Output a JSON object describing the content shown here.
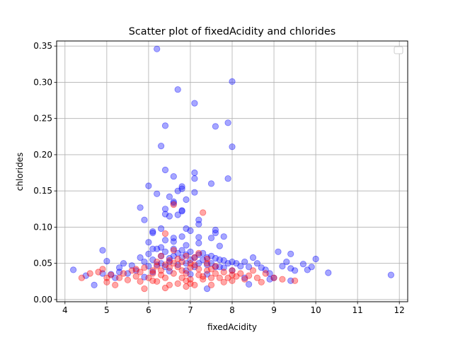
{
  "chart_data": {
    "type": "scatter",
    "title": "Scatter plot of fixedAcidity and chlorides",
    "xlabel": "fixedAcidity",
    "ylabel": "chlorides",
    "xlim": [
      3.8,
      12.2
    ],
    "ylim": [
      -0.003,
      0.357
    ],
    "xticks": [
      "4",
      "5",
      "6",
      "7",
      "8",
      "9",
      "10",
      "11",
      "12"
    ],
    "yticks": [
      "0.00",
      "0.05",
      "0.10",
      "0.15",
      "0.20",
      "0.25",
      "0.30",
      "0.35"
    ],
    "grid": true,
    "legend": {
      "placement": "top-right",
      "entries": []
    },
    "series": [
      {
        "color": "#0000ff",
        "alpha": 0.35,
        "points": [
          [
            4.2,
            0.041
          ],
          [
            4.5,
            0.033
          ],
          [
            4.7,
            0.02
          ],
          [
            4.9,
            0.068
          ],
          [
            4.9,
            0.036
          ],
          [
            5.0,
            0.053
          ],
          [
            5.1,
            0.035
          ],
          [
            5.3,
            0.044
          ],
          [
            5.4,
            0.05
          ],
          [
            5.5,
            0.036
          ],
          [
            5.6,
            0.047
          ],
          [
            5.7,
            0.04
          ],
          [
            5.8,
            0.058
          ],
          [
            5.9,
            0.052
          ],
          [
            6.0,
            0.063
          ],
          [
            6.0,
            0.046
          ],
          [
            6.1,
            0.055
          ],
          [
            6.1,
            0.092
          ],
          [
            6.2,
            0.048
          ],
          [
            6.2,
            0.07
          ],
          [
            6.3,
            0.06
          ],
          [
            6.3,
            0.05
          ],
          [
            6.4,
            0.066
          ],
          [
            6.4,
            0.045
          ],
          [
            6.5,
            0.057
          ],
          [
            6.5,
            0.052
          ],
          [
            6.6,
            0.07
          ],
          [
            6.6,
            0.06
          ],
          [
            6.7,
            0.064
          ],
          [
            6.7,
            0.048
          ],
          [
            6.8,
            0.068
          ],
          [
            6.8,
            0.058
          ],
          [
            6.9,
            0.062
          ],
          [
            6.9,
            0.05
          ],
          [
            7.0,
            0.066
          ],
          [
            7.0,
            0.055
          ],
          [
            7.1,
            0.058
          ],
          [
            7.1,
            0.045
          ],
          [
            7.2,
            0.062
          ],
          [
            7.2,
            0.05
          ],
          [
            7.3,
            0.064
          ],
          [
            7.3,
            0.055
          ],
          [
            7.4,
            0.058
          ],
          [
            7.4,
            0.048
          ],
          [
            7.5,
            0.06
          ],
          [
            7.5,
            0.05
          ],
          [
            7.6,
            0.057
          ],
          [
            7.6,
            0.045
          ],
          [
            7.7,
            0.055
          ],
          [
            7.7,
            0.045
          ],
          [
            7.8,
            0.054
          ],
          [
            7.8,
            0.044
          ],
          [
            7.9,
            0.05
          ],
          [
            8.0,
            0.052
          ],
          [
            8.0,
            0.04
          ],
          [
            8.1,
            0.05
          ],
          [
            8.2,
            0.046
          ],
          [
            8.3,
            0.052
          ],
          [
            8.4,
            0.045
          ],
          [
            8.5,
            0.058
          ],
          [
            8.6,
            0.05
          ],
          [
            8.7,
            0.044
          ],
          [
            8.8,
            0.041
          ],
          [
            8.9,
            0.036
          ],
          [
            9.0,
            0.03
          ],
          [
            9.1,
            0.066
          ],
          [
            9.2,
            0.046
          ],
          [
            9.3,
            0.052
          ],
          [
            9.4,
            0.063
          ],
          [
            9.4,
            0.043
          ],
          [
            9.5,
            0.04
          ],
          [
            9.7,
            0.049
          ],
          [
            9.8,
            0.041
          ],
          [
            9.9,
            0.045
          ],
          [
            10.0,
            0.056
          ],
          [
            10.3,
            0.037
          ],
          [
            11.8,
            0.034
          ],
          [
            8.4,
            0.021
          ],
          [
            7.4,
            0.015
          ],
          [
            5.9,
            0.031
          ],
          [
            6.2,
            0.346
          ],
          [
            6.7,
            0.29
          ],
          [
            8.0,
            0.301
          ],
          [
            7.1,
            0.271
          ],
          [
            7.9,
            0.244
          ],
          [
            6.4,
            0.24
          ],
          [
            7.6,
            0.239
          ],
          [
            6.3,
            0.212
          ],
          [
            8.0,
            0.211
          ],
          [
            6.4,
            0.179
          ],
          [
            7.1,
            0.175
          ],
          [
            6.6,
            0.17
          ],
          [
            7.1,
            0.167
          ],
          [
            7.9,
            0.167
          ],
          [
            7.5,
            0.16
          ],
          [
            6.0,
            0.157
          ],
          [
            6.8,
            0.156
          ],
          [
            6.8,
            0.153
          ],
          [
            6.7,
            0.15
          ],
          [
            6.2,
            0.146
          ],
          [
            7.1,
            0.148
          ],
          [
            6.5,
            0.142
          ],
          [
            6.9,
            0.138
          ],
          [
            6.6,
            0.135
          ],
          [
            6.6,
            0.133
          ],
          [
            5.8,
            0.127
          ],
          [
            6.4,
            0.125
          ],
          [
            6.8,
            0.123
          ],
          [
            6.8,
            0.122
          ],
          [
            6.4,
            0.118
          ],
          [
            6.7,
            0.117
          ],
          [
            6.5,
            0.115
          ],
          [
            5.9,
            0.11
          ],
          [
            7.2,
            0.11
          ],
          [
            7.2,
            0.104
          ],
          [
            6.9,
            0.098
          ],
          [
            7.0,
            0.095
          ],
          [
            6.1,
            0.094
          ],
          [
            6.3,
            0.098
          ],
          [
            7.6,
            0.096
          ],
          [
            7.6,
            0.092
          ],
          [
            6.8,
            0.087
          ],
          [
            7.2,
            0.086
          ],
          [
            6.6,
            0.085
          ],
          [
            7.8,
            0.087
          ],
          [
            7.5,
            0.085
          ],
          [
            6.4,
            0.082
          ],
          [
            6.6,
            0.08
          ],
          [
            6.0,
            0.079
          ],
          [
            7.2,
            0.078
          ],
          [
            7.7,
            0.074
          ],
          [
            6.3,
            0.072
          ],
          [
            6.1,
            0.07
          ],
          [
            6.9,
            0.075
          ],
          [
            5.3,
            0.038
          ],
          [
            5.2,
            0.03
          ],
          [
            6.5,
            0.039
          ],
          [
            7.0,
            0.035
          ],
          [
            7.4,
            0.035
          ],
          [
            8.3,
            0.03
          ],
          [
            9.4,
            0.026
          ],
          [
            8.9,
            0.028
          ],
          [
            6.1,
            0.038
          ],
          [
            6.9,
            0.04
          ]
        ]
      },
      {
        "color": "#ff0000",
        "alpha": 0.35,
        "points": [
          [
            4.4,
            0.03
          ],
          [
            4.6,
            0.036
          ],
          [
            4.8,
            0.038
          ],
          [
            4.9,
            0.042
          ],
          [
            5.0,
            0.03
          ],
          [
            5.0,
            0.024
          ],
          [
            5.1,
            0.034
          ],
          [
            5.2,
            0.02
          ],
          [
            5.3,
            0.03
          ],
          [
            5.4,
            0.036
          ],
          [
            5.5,
            0.027
          ],
          [
            5.6,
            0.04
          ],
          [
            5.7,
            0.032
          ],
          [
            5.8,
            0.025
          ],
          [
            5.8,
            0.038
          ],
          [
            5.9,
            0.015
          ],
          [
            5.9,
            0.044
          ],
          [
            6.0,
            0.03
          ],
          [
            6.1,
            0.036
          ],
          [
            6.1,
            0.04
          ],
          [
            6.2,
            0.025
          ],
          [
            6.2,
            0.046
          ],
          [
            6.3,
            0.034
          ],
          [
            6.3,
            0.04
          ],
          [
            6.4,
            0.016
          ],
          [
            6.4,
            0.03
          ],
          [
            6.4,
            0.091
          ],
          [
            6.5,
            0.044
          ],
          [
            6.5,
            0.02
          ],
          [
            6.6,
            0.131
          ],
          [
            6.6,
            0.036
          ],
          [
            6.6,
            0.05
          ],
          [
            6.7,
            0.022
          ],
          [
            6.7,
            0.045
          ],
          [
            6.8,
            0.03
          ],
          [
            6.8,
            0.04
          ],
          [
            6.9,
            0.018
          ],
          [
            6.9,
            0.036
          ],
          [
            7.0,
            0.028
          ],
          [
            7.0,
            0.044
          ],
          [
            7.1,
            0.048
          ],
          [
            7.1,
            0.02
          ],
          [
            7.2,
            0.034
          ],
          [
            7.2,
            0.042
          ],
          [
            7.3,
            0.12
          ],
          [
            7.3,
            0.028
          ],
          [
            7.4,
            0.04
          ],
          [
            7.4,
            0.05
          ],
          [
            7.5,
            0.03
          ],
          [
            7.5,
            0.02
          ],
          [
            7.6,
            0.036
          ],
          [
            7.6,
            0.046
          ],
          [
            7.7,
            0.03
          ],
          [
            7.8,
            0.038
          ],
          [
            7.8,
            0.024
          ],
          [
            7.9,
            0.03
          ],
          [
            8.0,
            0.04
          ],
          [
            8.0,
            0.026
          ],
          [
            8.1,
            0.032
          ],
          [
            8.2,
            0.036
          ],
          [
            8.3,
            0.028
          ],
          [
            8.4,
            0.033
          ],
          [
            8.5,
            0.04
          ],
          [
            8.6,
            0.03
          ],
          [
            8.7,
            0.024
          ],
          [
            8.8,
            0.036
          ],
          [
            9.0,
            0.03
          ],
          [
            9.2,
            0.028
          ],
          [
            9.5,
            0.026
          ],
          [
            7.2,
            0.064
          ],
          [
            6.9,
            0.06
          ],
          [
            6.3,
            0.06
          ],
          [
            7.1,
            0.058
          ],
          [
            6.6,
            0.068
          ],
          [
            6.5,
            0.054
          ],
          [
            7.4,
            0.056
          ],
          [
            6.8,
            0.052
          ],
          [
            7.0,
            0.05
          ],
          [
            6.2,
            0.052
          ],
          [
            6.7,
            0.056
          ],
          [
            7.3,
            0.032
          ],
          [
            6.9,
            0.026
          ],
          [
            6.1,
            0.026
          ],
          [
            7.0,
            0.022
          ],
          [
            6.4,
            0.048
          ],
          [
            7.5,
            0.042
          ],
          [
            5.7,
            0.042
          ],
          [
            8.0,
            0.034
          ]
        ]
      }
    ]
  }
}
